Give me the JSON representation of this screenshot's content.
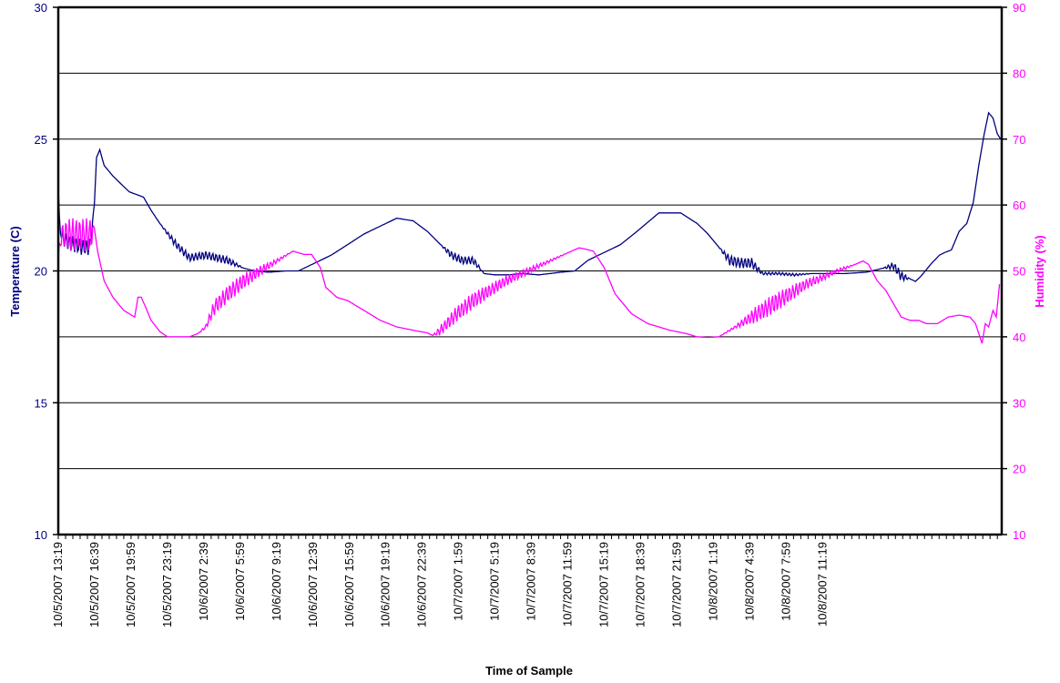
{
  "chart_data": {
    "type": "line",
    "title": "",
    "xlabel": "Time of Sample",
    "y_left_label": "Temperature (C)",
    "y_right_label": "Humidity (%)",
    "y_left_lim": [
      10,
      30
    ],
    "y_right_lim": [
      10,
      90
    ],
    "y_left_ticks": [
      "10",
      "15",
      "20",
      "25",
      "30"
    ],
    "y_right_ticks": [
      "10",
      "20",
      "30",
      "40",
      "50",
      "60",
      "70",
      "80",
      "90"
    ],
    "grid": true,
    "legend": "none",
    "x_ticks": [
      "10/5/2007 13:19",
      "10/5/2007 16:39",
      "10/5/2007 19:59",
      "10/5/2007 23:19",
      "10/6/2007 2:39",
      "10/6/2007 5:59",
      "10/6/2007 9:19",
      "10/6/2007 12:39",
      "10/6/2007 15:59",
      "10/6/2007 19:19",
      "10/6/2007 22:39",
      "10/7/2007 1:59",
      "10/7/2007 5:19",
      "10/7/2007 8:39",
      "10/7/2007 11:59",
      "10/7/2007 15:19",
      "10/7/2007 18:39",
      "10/7/2007 21:59",
      "10/8/2007 1:19",
      "10/8/2007 4:39",
      "10/8/2007 7:59",
      "10/8/2007 11:19"
    ],
    "series": [
      {
        "axis": "left",
        "color": "#000080",
        "x_hours": [
          0,
          0.1,
          0.3,
          0.8,
          1.5,
          2.2,
          2.9,
          3.3,
          3.5,
          3.8,
          4.2,
          5.0,
          6.5,
          7.8,
          8.5,
          9.3,
          10.8,
          12.0,
          13.5,
          15.5,
          17.0,
          18.0,
          19.3,
          20.8,
          22.0,
          23.5,
          25.0,
          26.5,
          28.0,
          29.5,
          31.0,
          32.5,
          33.8,
          35.0,
          36.0,
          37.0,
          38.0,
          39.0,
          40.0,
          41.3,
          42.5,
          44.0,
          45.0,
          46.0,
          47.3,
          48.5,
          50.0,
          51.5,
          53.0,
          55.0,
          57.0,
          58.5,
          59.5,
          60.5,
          61.5,
          62.5,
          63.5,
          64.5,
          66.0,
          67.5,
          69.0,
          70.5,
          72.0,
          74.0,
          75.5,
          76.5,
          77.2,
          78.0,
          78.5,
          79.0,
          80.0,
          80.7,
          81.2,
          81.8,
          82.5,
          83.2,
          83.8,
          84.3,
          84.8,
          85.2,
          85.6,
          86.0,
          86.3
        ],
        "values": [
          23.2,
          21.9,
          21.3,
          21.1,
          21.0,
          20.9,
          20.9,
          22.5,
          24.3,
          24.6,
          24.0,
          23.6,
          23.0,
          22.8,
          22.3,
          21.8,
          21.0,
          20.5,
          20.6,
          20.4,
          20.1,
          20.0,
          19.95,
          20.0,
          20.0,
          20.3,
          20.6,
          21.0,
          21.4,
          21.7,
          22.0,
          21.9,
          21.5,
          21.0,
          20.6,
          20.4,
          20.4,
          19.9,
          19.85,
          19.85,
          19.9,
          19.85,
          19.9,
          19.95,
          20.0,
          20.4,
          20.7,
          21.0,
          21.5,
          22.2,
          22.2,
          21.8,
          21.4,
          20.9,
          20.4,
          20.3,
          20.3,
          19.9,
          19.9,
          19.85,
          19.9,
          19.9,
          19.9,
          19.95,
          20.1,
          20.2,
          19.8,
          19.7,
          19.6,
          19.8,
          20.3,
          20.6,
          20.7,
          20.8,
          21.5,
          21.8,
          22.6,
          24.0,
          25.2,
          26.0,
          25.8,
          25.2,
          25.0
        ],
        "amplitude": [
          0,
          0.2,
          0.25,
          0.3,
          0.3,
          0.3,
          0.3,
          0,
          0,
          0,
          0,
          0,
          0,
          0,
          0,
          0,
          0.15,
          0.15,
          0.15,
          0.15,
          0,
          0,
          0,
          0,
          0,
          0,
          0,
          0,
          0,
          0,
          0,
          0,
          0,
          0,
          0.15,
          0.15,
          0.15,
          0,
          0,
          0,
          0,
          0,
          0,
          0,
          0,
          0,
          0,
          0,
          0,
          0,
          0,
          0,
          0,
          0,
          0.2,
          0.2,
          0.2,
          0.05,
          0.05,
          0.05,
          0,
          0,
          0,
          0,
          0,
          0.15,
          0.2,
          0,
          0,
          0,
          0,
          0,
          0,
          0,
          0,
          0,
          0,
          0,
          0,
          0,
          0,
          0,
          0
        ]
      },
      {
        "axis": "right",
        "color": "#ff00ff",
        "x_hours": [
          0,
          0.2,
          0.5,
          1.0,
          2.0,
          3.0,
          3.3,
          3.6,
          3.8,
          4.2,
          5.0,
          6.0,
          7.0,
          7.3,
          7.6,
          8.0,
          8.5,
          9.3,
          10.0,
          11.0,
          12.0,
          12.8,
          13.5,
          14.3,
          15.5,
          17.0,
          18.5,
          20.0,
          21.5,
          22.5,
          23.2,
          24.0,
          24.5,
          25.5,
          26.5,
          28.0,
          29.5,
          31.0,
          32.5,
          33.8,
          34.3,
          35.0,
          36.5,
          38.0,
          39.5,
          41.0,
          43.0,
          45.0,
          47.0,
          47.7,
          48.3,
          49.0,
          50.0,
          51.0,
          52.5,
          54.0,
          56.0,
          57.5,
          58.5,
          59.5,
          60.5,
          62.0,
          64.0,
          65.5,
          67.0,
          68.5,
          70.0,
          71.3,
          72.2,
          73.0,
          73.7,
          74.2,
          75.0,
          75.8,
          76.5,
          77.2,
          78.0,
          78.8,
          79.5,
          80.5,
          81.5,
          82.5,
          83.5,
          84.0,
          84.3,
          84.6,
          84.9,
          85.2,
          85.6,
          85.9,
          86.2
        ],
        "values": [
          52.0,
          55.0,
          55.5,
          55.5,
          55.5,
          55.5,
          56.5,
          53.0,
          51.5,
          48.5,
          46.0,
          44.0,
          43.0,
          46.0,
          46.0,
          44.5,
          42.5,
          40.8,
          40.0,
          40.0,
          40.0,
          40.5,
          41.5,
          44.5,
          46.5,
          48.5,
          50.0,
          51.5,
          53.0,
          52.5,
          52.5,
          50.5,
          47.5,
          46.0,
          45.5,
          44.0,
          42.5,
          41.5,
          41.0,
          40.6,
          40.2,
          41.0,
          43.5,
          45.5,
          47.0,
          48.5,
          50.0,
          51.5,
          53.0,
          53.5,
          53.3,
          53.0,
          50.5,
          46.5,
          43.5,
          42.0,
          41.0,
          40.5,
          40.0,
          39.9,
          40.0,
          41.5,
          43.5,
          45.0,
          46.5,
          48.0,
          49.0,
          50.0,
          50.5,
          51.0,
          51.5,
          51.0,
          48.5,
          47.0,
          45.0,
          43.0,
          42.5,
          42.5,
          42.0,
          42.0,
          43.0,
          43.3,
          43.0,
          42.0,
          40.5,
          39.0,
          42.0,
          41.5,
          44.0,
          43.0,
          48.0
        ],
        "amplitude": [
          0,
          1.5,
          2.2,
          2.5,
          2.5,
          2.5,
          0,
          0,
          0,
          0,
          0,
          0,
          0,
          0,
          0,
          0,
          0,
          0,
          0,
          0,
          0,
          0,
          0.3,
          1.2,
          1.3,
          1.2,
          0.8,
          0.3,
          0,
          0,
          0,
          0,
          0,
          0,
          0,
          0,
          0,
          0,
          0,
          0,
          0,
          0.8,
          1.2,
          1.3,
          1.0,
          0.8,
          0.5,
          0.2,
          0,
          0,
          0,
          0,
          0,
          0,
          0,
          0,
          0,
          0,
          0,
          0,
          0,
          0.2,
          1.3,
          1.5,
          1.2,
          0.8,
          0.5,
          0.3,
          0.2,
          0,
          0,
          0,
          0,
          0,
          0,
          0,
          0,
          0,
          0,
          0,
          0,
          0,
          0,
          0,
          0,
          0,
          0,
          0,
          0,
          0,
          0
        ]
      }
    ]
  }
}
